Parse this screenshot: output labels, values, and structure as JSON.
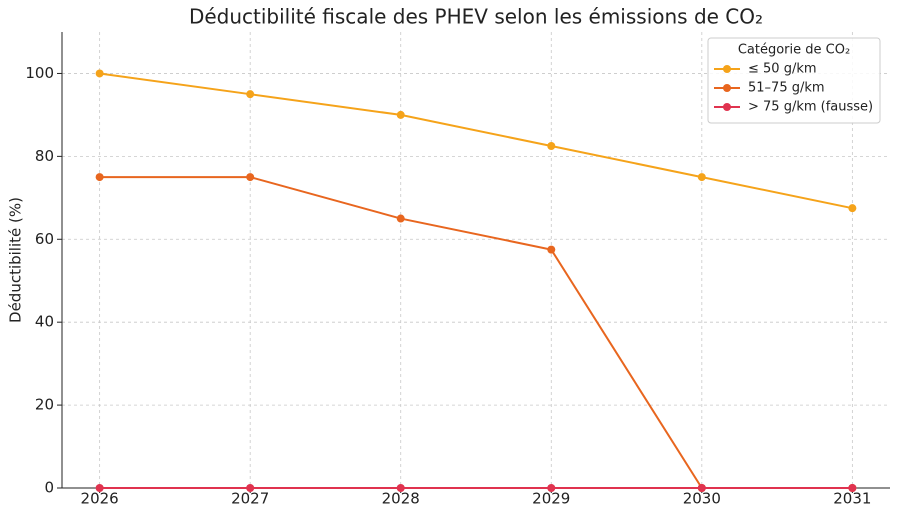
{
  "chart_data": {
    "type": "line",
    "title": "Déductibilité fiscale des PHEV selon les émissions de CO₂",
    "y_label": "Déductibilité (%)",
    "x": [
      2026,
      2027,
      2028,
      2029,
      2030,
      2031
    ],
    "xlim": [
      2025.75,
      2031.25
    ],
    "xticks": [
      2026,
      2027,
      2028,
      2029,
      2030,
      2031
    ],
    "ylim": [
      0,
      110
    ],
    "yticks": [
      0,
      20,
      40,
      60,
      80,
      100
    ],
    "grid": true,
    "legend_title": "Catégorie de CO₂",
    "legend_position": "upper-right",
    "series": [
      {
        "name": "≤ 50 g/km",
        "color": "#f5a31a",
        "values": [
          100,
          95,
          90,
          82.5,
          75,
          67.5
        ]
      },
      {
        "name": "51–75 g/km",
        "color": "#e8661f",
        "values": [
          75,
          75,
          65,
          57.5,
          0,
          0
        ]
      },
      {
        "name": "> 75 g/km (fausse)",
        "color": "#e0334f",
        "values": [
          0,
          0,
          0,
          0,
          0,
          0
        ]
      }
    ]
  }
}
